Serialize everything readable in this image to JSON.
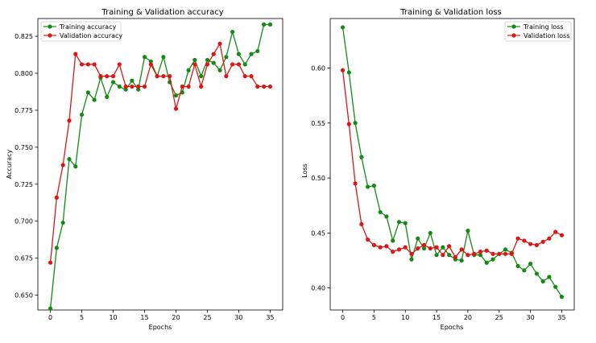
{
  "chart_data": [
    {
      "type": "line",
      "title": "Training & Validation accuracy",
      "xlabel": "Epochs",
      "ylabel": "Accuracy",
      "xlim": [
        -2,
        37
      ],
      "ylim": [
        0.64,
        0.837
      ],
      "xticks": [
        0,
        5,
        10,
        15,
        20,
        25,
        30,
        35
      ],
      "yticks": [
        0.65,
        0.675,
        0.7,
        0.725,
        0.75,
        0.775,
        0.8,
        0.825
      ],
      "ytick_labels": [
        "0.650",
        "0.675",
        "0.700",
        "0.725",
        "0.750",
        "0.775",
        "0.800",
        "0.825"
      ],
      "legend_position": "top-left",
      "grid": false,
      "x": [
        0,
        1,
        2,
        3,
        4,
        5,
        6,
        7,
        8,
        9,
        10,
        11,
        12,
        13,
        14,
        15,
        16,
        17,
        18,
        19,
        20,
        21,
        22,
        23,
        24,
        25,
        26,
        27,
        28,
        29,
        30,
        31,
        32,
        33,
        34,
        35
      ],
      "series": [
        {
          "name": "Training accuracy",
          "color": "#138a13",
          "values": [
            0.641,
            0.682,
            0.699,
            0.742,
            0.737,
            0.772,
            0.787,
            0.782,
            0.797,
            0.784,
            0.794,
            0.791,
            0.789,
            0.795,
            0.789,
            0.811,
            0.808,
            0.798,
            0.811,
            0.794,
            0.785,
            0.787,
            0.802,
            0.809,
            0.798,
            0.809,
            0.807,
            0.802,
            0.811,
            0.828,
            0.813,
            0.806,
            0.813,
            0.815,
            0.833,
            0.833
          ]
        },
        {
          "name": "Validation accuracy",
          "color": "#dd1515",
          "values": [
            0.672,
            0.716,
            0.738,
            0.768,
            0.813,
            0.806,
            0.806,
            0.806,
            0.798,
            0.798,
            0.798,
            0.806,
            0.791,
            0.791,
            0.791,
            0.791,
            0.806,
            0.798,
            0.798,
            0.798,
            0.776,
            0.791,
            0.791,
            0.806,
            0.791,
            0.806,
            0.813,
            0.82,
            0.798,
            0.806,
            0.806,
            0.798,
            0.798,
            0.791,
            0.791,
            0.791
          ]
        }
      ]
    },
    {
      "type": "line",
      "title": "Training & Validation loss",
      "xlabel": "Epochs",
      "ylabel": "Loss",
      "xlim": [
        -2,
        37
      ],
      "ylim": [
        0.38,
        0.645
      ],
      "xticks": [
        0,
        5,
        10,
        15,
        20,
        25,
        30,
        35
      ],
      "yticks": [
        0.4,
        0.45,
        0.5,
        0.55,
        0.6
      ],
      "ytick_labels": [
        "0.40",
        "0.45",
        "0.50",
        "0.55",
        "0.60"
      ],
      "legend_position": "top-right",
      "grid": false,
      "x": [
        0,
        1,
        2,
        3,
        4,
        5,
        6,
        7,
        8,
        9,
        10,
        11,
        12,
        13,
        14,
        15,
        16,
        17,
        18,
        19,
        20,
        21,
        22,
        23,
        24,
        25,
        26,
        27,
        28,
        29,
        30,
        31,
        32,
        33,
        34,
        35
      ],
      "series": [
        {
          "name": "Training loss",
          "color": "#138a13",
          "values": [
            0.637,
            0.596,
            0.55,
            0.519,
            0.492,
            0.493,
            0.469,
            0.465,
            0.443,
            0.46,
            0.459,
            0.426,
            0.445,
            0.436,
            0.45,
            0.43,
            0.437,
            0.43,
            0.426,
            0.425,
            0.452,
            0.43,
            0.43,
            0.423,
            0.426,
            0.431,
            0.435,
            0.432,
            0.42,
            0.416,
            0.422,
            0.413,
            0.406,
            0.41,
            0.401,
            0.392
          ]
        },
        {
          "name": "Validation loss",
          "color": "#dd1515",
          "values": [
            0.598,
            0.549,
            0.495,
            0.458,
            0.444,
            0.439,
            0.437,
            0.438,
            0.433,
            0.435,
            0.437,
            0.431,
            0.436,
            0.439,
            0.436,
            0.437,
            0.43,
            0.438,
            0.428,
            0.435,
            0.43,
            0.431,
            0.433,
            0.434,
            0.431,
            0.431,
            0.431,
            0.431,
            0.445,
            0.443,
            0.44,
            0.439,
            0.442,
            0.445,
            0.451,
            0.448
          ]
        }
      ]
    }
  ]
}
